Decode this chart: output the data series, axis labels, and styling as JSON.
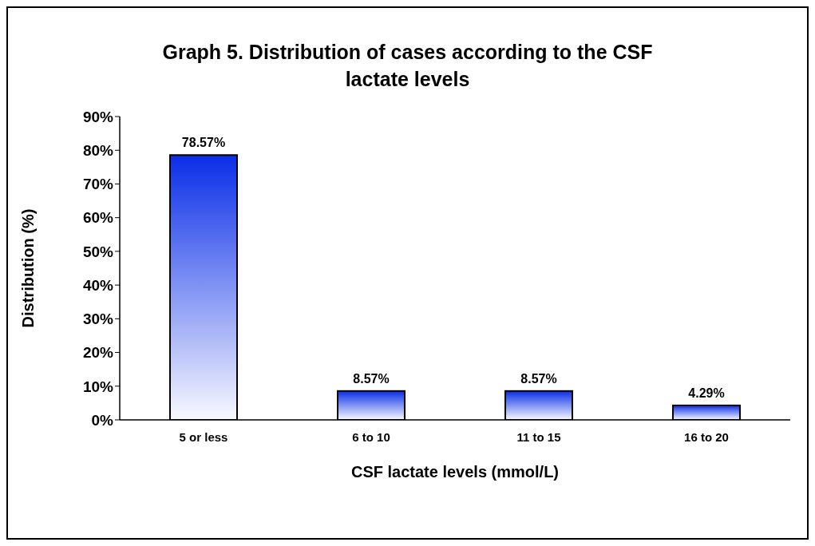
{
  "chart_data": {
    "type": "bar",
    "title": "Graph 5. Distribution of cases according to the CSF lactate levels",
    "xlabel": "CSF lactate levels (mmol/L)",
    "ylabel": "Distribution (%)",
    "categories": [
      "5 or less",
      "6 to 10",
      "11 to 15",
      "16 to 20"
    ],
    "values": [
      78.57,
      8.57,
      8.57,
      4.29
    ],
    "value_labels": [
      "78.57%",
      "8.57%",
      "8.57%",
      "4.29%"
    ],
    "color": "#0a2ee8",
    "ylim": [
      0,
      90
    ],
    "yticks": [
      {
        "value": 0,
        "label": "0%"
      },
      {
        "value": 10,
        "label": "10%"
      },
      {
        "value": 20,
        "label": "20%"
      },
      {
        "value": 30,
        "label": "30%"
      },
      {
        "value": 40,
        "label": "40%"
      },
      {
        "value": 50,
        "label": "50%"
      },
      {
        "value": 60,
        "label": "60%"
      },
      {
        "value": 70,
        "label": "70%"
      },
      {
        "value": 80,
        "label": "80%"
      },
      {
        "value": 90,
        "label": "90%"
      }
    ]
  }
}
